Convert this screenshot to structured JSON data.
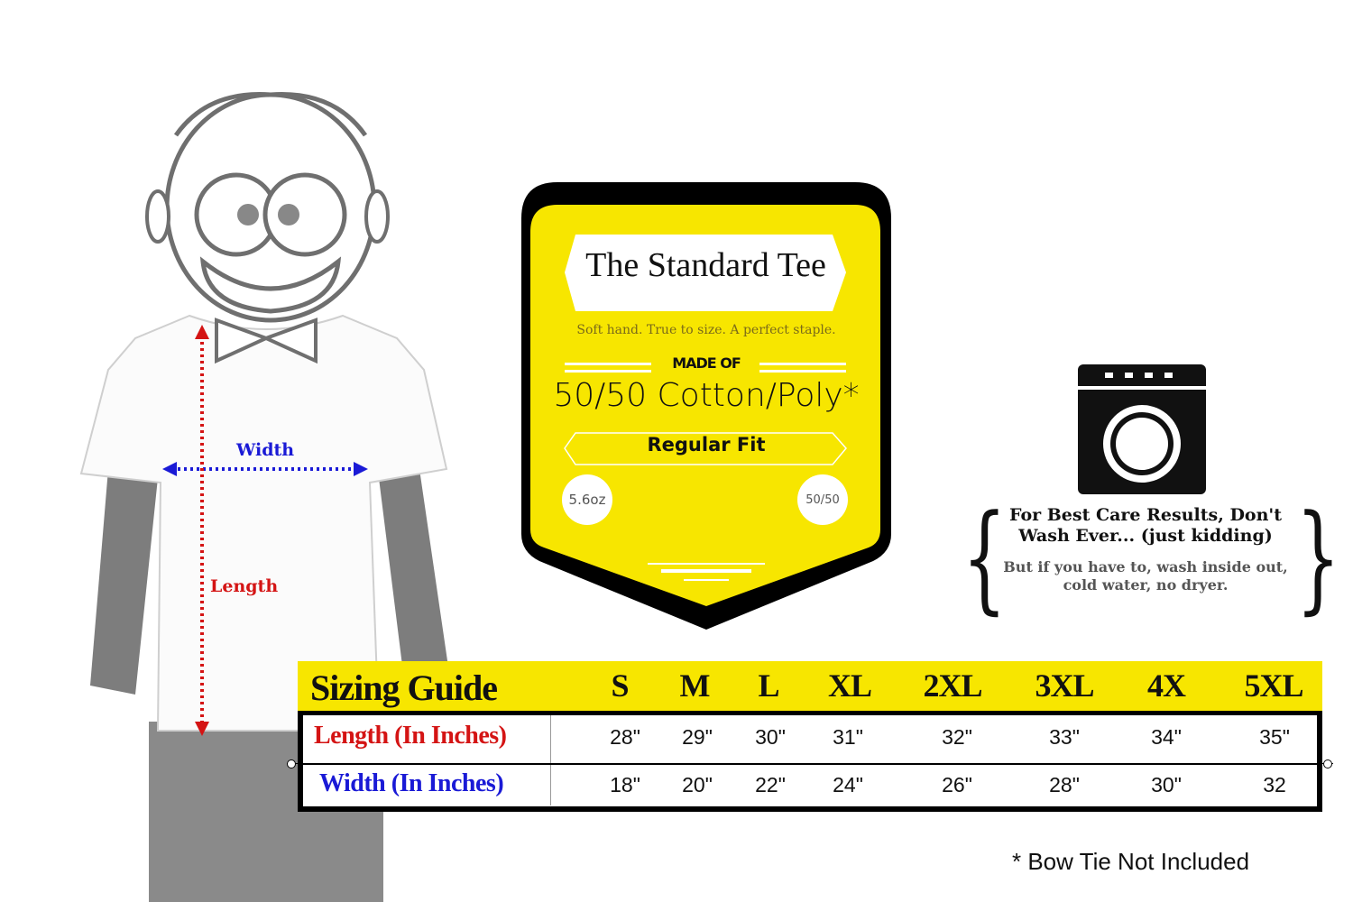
{
  "figure": {
    "width_label": "Width",
    "length_label": "Length",
    "width_arrow_color": "#1a1ad6",
    "length_arrow_color": "#d41414"
  },
  "badge": {
    "title": "The Standard Tee",
    "tagline": "Soft hand. True to size. A perfect staple.",
    "made_of_label": "MADE OF",
    "material": "50/50 Cotton/Poly*",
    "fit": "Regular Fit",
    "weight": "5.6oz",
    "blend": "50/50",
    "colors": {
      "fill": "#f7e600",
      "border": "#000000"
    }
  },
  "care": {
    "icon": "washing-machine-icon",
    "title": "For Best Care Results, Don't Wash Ever... (just kidding)",
    "subtitle": "But if you have to, wash inside out, cold water, no dryer."
  },
  "sizing_table": {
    "title": "Sizing Guide",
    "sizes": [
      "S",
      "M",
      "L",
      "XL",
      "2XL",
      "3XL",
      "4X",
      "5XL"
    ],
    "rows": [
      {
        "label": "Length (In Inches)",
        "color": "#d41414",
        "values": [
          "28\"",
          "29\"",
          "30\"",
          "31\"",
          "32\"",
          "33\"",
          "34\"",
          "35\""
        ]
      },
      {
        "label": "Width (In Inches)",
        "color": "#1a1ad6",
        "values": [
          "18\"",
          "20\"",
          "22\"",
          "24\"",
          "26\"",
          "28\"",
          "30\"",
          "32"
        ]
      }
    ]
  },
  "footnote": "* Bow Tie Not Included"
}
